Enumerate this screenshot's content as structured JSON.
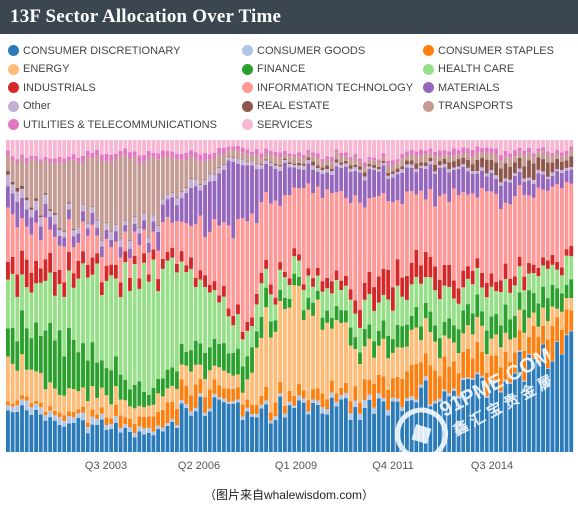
{
  "header": {
    "title": "13F Sector Allocation Over Time"
  },
  "legend": [
    {
      "label": "CONSUMER DISCRETIONARY",
      "color": "#2b7bba"
    },
    {
      "label": "CONSUMER GOODS",
      "color": "#aec7e8"
    },
    {
      "label": "CONSUMER STAPLES",
      "color": "#ff7f0e"
    },
    {
      "label": "ENERGY",
      "color": "#ffbb78"
    },
    {
      "label": "FINANCE",
      "color": "#2ca02c"
    },
    {
      "label": "HEALTH CARE",
      "color": "#98df8a"
    },
    {
      "label": "INDUSTRIALS",
      "color": "#d62728"
    },
    {
      "label": "INFORMATION TECHNOLOGY",
      "color": "#ff9896"
    },
    {
      "label": "MATERIALS",
      "color": "#9467bd"
    },
    {
      "label": "Other",
      "color": "#c5b0d5"
    },
    {
      "label": "REAL ESTATE",
      "color": "#8c564b"
    },
    {
      "label": "TRANSPORTS",
      "color": "#c49c94"
    },
    {
      "label": "UTILITIES & TELECOMMUNICATIONS",
      "color": "#e377c2"
    },
    {
      "label": "SERVICES",
      "color": "#f7b6d2"
    }
  ],
  "chart_data": {
    "type": "bar",
    "stacked": "100%",
    "x_tick_labels": [
      "Q3 2003",
      "Q2 2006",
      "Q1 2009",
      "Q4 2011",
      "Q3 2014"
    ],
    "ylim": [
      0,
      100
    ],
    "series": [
      {
        "name": "CONSUMER DISCRETIONARY",
        "keypoints": [
          [
            0,
            12
          ],
          [
            10,
            11
          ],
          [
            20,
            9
          ],
          [
            30,
            6
          ],
          [
            40,
            14
          ],
          [
            48,
            15
          ],
          [
            56,
            12
          ],
          [
            66,
            14
          ],
          [
            76,
            15
          ],
          [
            86,
            16
          ],
          [
            96,
            22
          ],
          [
            104,
            24
          ],
          [
            112,
            30
          ],
          [
            120,
            40
          ]
        ]
      },
      {
        "name": "CONSUMER GOODS",
        "keypoints": [
          [
            0,
            2
          ],
          [
            20,
            2
          ],
          [
            40,
            1
          ],
          [
            60,
            1
          ],
          [
            76,
            2
          ],
          [
            90,
            1
          ],
          [
            120,
            0
          ]
        ]
      },
      {
        "name": "CONSUMER STAPLES",
        "keypoints": [
          [
            0,
            1
          ],
          [
            20,
            2
          ],
          [
            36,
            6
          ],
          [
            48,
            4
          ],
          [
            60,
            3
          ],
          [
            72,
            3
          ],
          [
            80,
            8
          ],
          [
            90,
            10
          ],
          [
            100,
            9
          ],
          [
            112,
            8
          ],
          [
            120,
            9
          ]
        ]
      },
      {
        "name": "ENERGY",
        "keypoints": [
          [
            0,
            11
          ],
          [
            10,
            8
          ],
          [
            20,
            6
          ],
          [
            30,
            4
          ],
          [
            40,
            6
          ],
          [
            50,
            5
          ],
          [
            60,
            32
          ],
          [
            66,
            24
          ],
          [
            74,
            14
          ],
          [
            84,
            10
          ],
          [
            96,
            8
          ],
          [
            110,
            6
          ],
          [
            120,
            4
          ]
        ]
      },
      {
        "name": "FINANCE",
        "keypoints": [
          [
            0,
            8
          ],
          [
            10,
            20
          ],
          [
            20,
            10
          ],
          [
            30,
            5
          ],
          [
            40,
            6
          ],
          [
            50,
            8
          ],
          [
            58,
            4
          ],
          [
            66,
            3
          ],
          [
            74,
            5
          ],
          [
            84,
            6
          ],
          [
            96,
            6
          ],
          [
            110,
            8
          ],
          [
            120,
            6
          ]
        ]
      },
      {
        "name": "HEALTH CARE",
        "keypoints": [
          [
            0,
            14
          ],
          [
            10,
            14
          ],
          [
            20,
            28
          ],
          [
            30,
            40
          ],
          [
            40,
            18
          ],
          [
            50,
            10
          ],
          [
            58,
            6
          ],
          [
            66,
            6
          ],
          [
            74,
            10
          ],
          [
            84,
            12
          ],
          [
            96,
            10
          ],
          [
            110,
            8
          ],
          [
            120,
            8
          ]
        ]
      },
      {
        "name": "INDUSTRIALS",
        "keypoints": [
          [
            0,
            7
          ],
          [
            10,
            6
          ],
          [
            20,
            4
          ],
          [
            30,
            3
          ],
          [
            40,
            3
          ],
          [
            50,
            3
          ],
          [
            60,
            2
          ],
          [
            70,
            3
          ],
          [
            80,
            8
          ],
          [
            90,
            7
          ],
          [
            100,
            4
          ],
          [
            120,
            3
          ]
        ]
      },
      {
        "name": "INFORMATION TECHNOLOGY",
        "keypoints": [
          [
            0,
            14
          ],
          [
            10,
            10
          ],
          [
            20,
            8
          ],
          [
            30,
            8
          ],
          [
            40,
            14
          ],
          [
            50,
            30
          ],
          [
            58,
            22
          ],
          [
            66,
            24
          ],
          [
            74,
            28
          ],
          [
            84,
            22
          ],
          [
            96,
            24
          ],
          [
            110,
            28
          ],
          [
            120,
            22
          ]
        ]
      },
      {
        "name": "MATERIALS",
        "keypoints": [
          [
            0,
            6
          ],
          [
            10,
            4
          ],
          [
            20,
            3
          ],
          [
            30,
            3
          ],
          [
            40,
            10
          ],
          [
            48,
            22
          ],
          [
            56,
            10
          ],
          [
            64,
            6
          ],
          [
            72,
            8
          ],
          [
            82,
            10
          ],
          [
            92,
            8
          ],
          [
            104,
            6
          ],
          [
            120,
            4
          ]
        ]
      },
      {
        "name": "Other",
        "keypoints": [
          [
            0,
            3
          ],
          [
            20,
            2
          ],
          [
            40,
            2
          ],
          [
            60,
            1
          ],
          [
            80,
            1
          ],
          [
            100,
            1
          ],
          [
            120,
            1
          ]
        ]
      },
      {
        "name": "REAL ESTATE",
        "keypoints": [
          [
            0,
            1
          ],
          [
            20,
            0
          ],
          [
            50,
            0
          ],
          [
            66,
            1
          ],
          [
            80,
            1
          ],
          [
            96,
            2
          ],
          [
            104,
            4
          ],
          [
            110,
            5
          ],
          [
            120,
            3
          ]
        ]
      },
      {
        "name": "TRANSPORTS",
        "keypoints": [
          [
            0,
            6
          ],
          [
            10,
            18
          ],
          [
            20,
            20
          ],
          [
            30,
            24
          ],
          [
            40,
            6
          ],
          [
            50,
            2
          ],
          [
            60,
            2
          ],
          [
            80,
            2
          ],
          [
            96,
            2
          ],
          [
            110,
            3
          ],
          [
            120,
            2
          ]
        ]
      },
      {
        "name": "UTILITIES & TELECOMMUNICATIONS",
        "keypoints": [
          [
            0,
            1
          ],
          [
            20,
            2
          ],
          [
            40,
            2
          ],
          [
            60,
            1
          ],
          [
            80,
            1
          ],
          [
            100,
            2
          ],
          [
            120,
            1
          ]
        ]
      },
      {
        "name": "SERVICES",
        "keypoints": [
          [
            0,
            4
          ],
          [
            10,
            6
          ],
          [
            20,
            4
          ],
          [
            30,
            4
          ],
          [
            40,
            4
          ],
          [
            50,
            3
          ],
          [
            60,
            4
          ],
          [
            70,
            4
          ],
          [
            80,
            6
          ],
          [
            90,
            3
          ],
          [
            100,
            3
          ],
          [
            110,
            4
          ],
          [
            120,
            3
          ]
        ]
      }
    ]
  },
  "watermark": {
    "text": "91PME.COM",
    "subtext": "鑫 汇 宝 贵 金 属"
  },
  "caption": "（图片来自whalewisdom.com）"
}
